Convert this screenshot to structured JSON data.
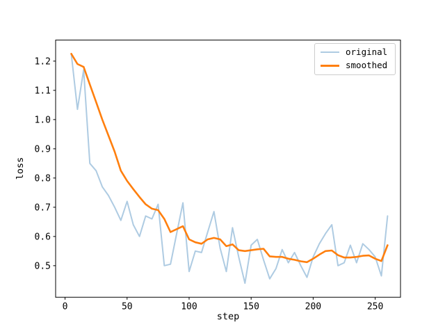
{
  "figure": {
    "background": "#ffffff"
  },
  "chart_data": {
    "type": "line",
    "title": "",
    "xlabel": "step",
    "ylabel": "loss",
    "x": [
      5,
      10,
      15,
      20,
      25,
      30,
      35,
      40,
      45,
      50,
      55,
      60,
      65,
      70,
      75,
      80,
      85,
      90,
      95,
      100,
      105,
      110,
      115,
      120,
      125,
      130,
      135,
      140,
      145,
      150,
      155,
      160,
      165,
      170,
      175,
      180,
      185,
      190,
      195,
      200,
      205,
      210,
      215,
      220,
      225,
      230,
      235,
      240,
      245,
      250,
      255,
      260
    ],
    "series": [
      {
        "name": "original",
        "color": "#aecbe2",
        "line_width": 2,
        "values": [
          1.225,
          1.035,
          1.17,
          0.85,
          0.825,
          0.77,
          0.74,
          0.7,
          0.655,
          0.72,
          0.64,
          0.6,
          0.67,
          0.66,
          0.71,
          0.5,
          0.505,
          0.61,
          0.715,
          0.48,
          0.55,
          0.545,
          0.615,
          0.685,
          0.56,
          0.48,
          0.63,
          0.53,
          0.44,
          0.57,
          0.59,
          0.52,
          0.455,
          0.49,
          0.555,
          0.51,
          0.545,
          0.5,
          0.46,
          0.53,
          0.575,
          0.61,
          0.64,
          0.5,
          0.51,
          0.57,
          0.51,
          0.575,
          0.555,
          0.53,
          0.465,
          0.67
        ]
      },
      {
        "name": "smoothed",
        "color": "#ff7f0e",
        "line_width": 2.6,
        "values": [
          1.225,
          1.19,
          1.18,
          1.12,
          1.06,
          1.0,
          0.945,
          0.89,
          0.825,
          0.79,
          0.762,
          0.735,
          0.71,
          0.695,
          0.69,
          0.66,
          0.615,
          0.625,
          0.635,
          0.59,
          0.58,
          0.575,
          0.59,
          0.595,
          0.59,
          0.567,
          0.573,
          0.553,
          0.55,
          0.553,
          0.556,
          0.558,
          0.532,
          0.53,
          0.53,
          0.524,
          0.52,
          0.515,
          0.512,
          0.524,
          0.538,
          0.55,
          0.552,
          0.536,
          0.528,
          0.528,
          0.53,
          0.534,
          0.535,
          0.524,
          0.516,
          0.57
        ]
      }
    ],
    "xlim": [
      -7.6,
      270.4
    ],
    "ylim": [
      0.392,
      1.272
    ],
    "xticks": {
      "values": [
        0,
        50,
        100,
        150,
        200,
        250
      ],
      "labels": [
        "0",
        "50",
        "100",
        "150",
        "200",
        "250"
      ]
    },
    "yticks": {
      "values": [
        0.5,
        0.6,
        0.7,
        0.8,
        0.9,
        1.0,
        1.1,
        1.2
      ],
      "labels": [
        "0.5",
        "0.6",
        "0.7",
        "0.8",
        "0.9",
        "1.0",
        "1.1",
        "1.2"
      ]
    },
    "grid": false,
    "legend": {
      "position": "upper right"
    }
  }
}
